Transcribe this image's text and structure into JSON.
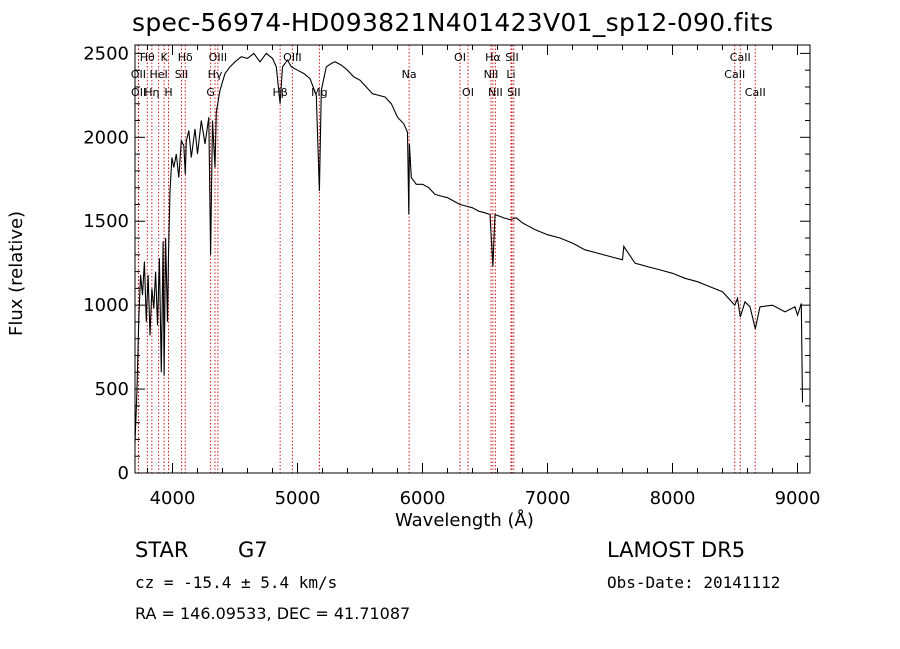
{
  "title": "spec-56974-HD093821N401423V01_sp12-090.fits",
  "object_class": "STAR",
  "subclass": "G7",
  "survey": "LAMOST DR5",
  "redshift_text": "cz = -15.4 ± 5.4 km/s",
  "obs_date_text": "Obs-Date: 20141112",
  "coords_text": "RA = 146.09533, DEC =  41.71087",
  "chart_data": {
    "type": "line",
    "title": "spec-56974-HD093821N401423V01_sp12-090.fits",
    "xlabel": "Wavelength (Å)",
    "ylabel": "Flux (relative)",
    "xlim": [
      3700,
      9100
    ],
    "ylim": [
      0,
      2550
    ],
    "xticks": [
      4000,
      5000,
      6000,
      7000,
      8000,
      9000
    ],
    "yticks": [
      0,
      500,
      1000,
      1500,
      2000,
      2500
    ],
    "grid": false,
    "line_color": "#000000",
    "marker_color": "#cc0000",
    "series": [
      {
        "x": [
          3700,
          3715,
          3730,
          3745,
          3760,
          3775,
          3790,
          3805,
          3820,
          3835,
          3850,
          3865,
          3880,
          3895,
          3910,
          3925,
          3933,
          3945,
          3960,
          3968,
          3980,
          3995,
          4010,
          4030,
          4050,
          4070,
          4090,
          4102,
          4110,
          4130,
          4150,
          4180,
          4200,
          4230,
          4260,
          4290,
          4305,
          4320,
          4340,
          4350,
          4380,
          4420,
          4460,
          4500,
          4550,
          4600,
          4650,
          4700,
          4750,
          4800,
          4830,
          4861,
          4880,
          4920,
          4950,
          5000,
          5050,
          5100,
          5150,
          5175,
          5190,
          5230,
          5270,
          5300,
          5350,
          5400,
          5450,
          5500,
          5550,
          5600,
          5650,
          5700,
          5750,
          5800,
          5850,
          5880,
          5890,
          5895,
          5910,
          5950,
          6000,
          6050,
          6100,
          6150,
          6200,
          6250,
          6300,
          6350,
          6400,
          6450,
          6500,
          6540,
          6563,
          6580,
          6650,
          6700,
          6750,
          6800,
          6850,
          6900,
          7000,
          7100,
          7200,
          7300,
          7400,
          7500,
          7600,
          7610,
          7700,
          7800,
          7900,
          8000,
          8100,
          8200,
          8300,
          8400,
          8498,
          8520,
          8542,
          8580,
          8620,
          8662,
          8700,
          8800,
          8900,
          8980,
          9000,
          9030,
          9040
        ],
        "y": [
          180,
          480,
          920,
          1180,
          1060,
          1260,
          900,
          1180,
          820,
          1100,
          980,
          1200,
          880,
          1280,
          600,
          1380,
          580,
          1400,
          900,
          1300,
          1680,
          1880,
          1820,
          1900,
          1760,
          1980,
          1950,
          1780,
          1980,
          2040,
          1880,
          2050,
          1900,
          2100,
          1960,
          2120,
          1300,
          2100,
          1820,
          2150,
          2280,
          2380,
          2420,
          2450,
          2480,
          2470,
          2500,
          2450,
          2500,
          2470,
          2420,
          2200,
          2420,
          2460,
          2420,
          2400,
          2380,
          2350,
          2250,
          1680,
          2280,
          2420,
          2440,
          2450,
          2430,
          2400,
          2360,
          2340,
          2300,
          2260,
          2250,
          2240,
          2200,
          2120,
          2080,
          2030,
          1540,
          1960,
          1760,
          1720,
          1720,
          1700,
          1660,
          1650,
          1640,
          1620,
          1600,
          1590,
          1580,
          1560,
          1550,
          1540,
          1230,
          1540,
          1520,
          1510,
          1520,
          1490,
          1470,
          1450,
          1420,
          1400,
          1370,
          1330,
          1310,
          1290,
          1270,
          1350,
          1250,
          1230,
          1210,
          1190,
          1160,
          1140,
          1110,
          1080,
          1000,
          1040,
          930,
          1020,
          990,
          860,
          990,
          1000,
          960,
          990,
          940,
          1010,
          420
        ]
      }
    ],
    "lines": [
      {
        "name": "Hθ",
        "wavelength": 3798,
        "row": 0
      },
      {
        "name": "K",
        "wavelength": 3933,
        "row": 0
      },
      {
        "name": "Hδ",
        "wavelength": 4102,
        "row": 0
      },
      {
        "name": "OIII",
        "wavelength": 4363,
        "row": 0
      },
      {
        "name": "OIII",
        "wavelength": 4959,
        "row": 0
      },
      {
        "name": "OI",
        "wavelength": 6300,
        "row": 0
      },
      {
        "name": "Hα",
        "wavelength": 6563,
        "row": 0
      },
      {
        "name": "SII",
        "wavelength": 6716,
        "row": 0
      },
      {
        "name": "CaII",
        "wavelength": 8542,
        "row": 0
      },
      {
        "name": "OII",
        "wavelength": 3727,
        "row": 1
      },
      {
        "name": "HeI",
        "wavelength": 3889,
        "row": 1
      },
      {
        "name": "SII",
        "wavelength": 4072,
        "row": 1
      },
      {
        "name": "Hγ",
        "wavelength": 4340,
        "row": 1
      },
      {
        "name": "Na",
        "wavelength": 5893,
        "row": 1
      },
      {
        "name": "NII",
        "wavelength": 6548,
        "row": 1
      },
      {
        "name": "Li",
        "wavelength": 6708,
        "row": 1
      },
      {
        "name": "CaII",
        "wavelength": 8498,
        "row": 1
      },
      {
        "name": "OII",
        "wavelength": 3729,
        "row": 2
      },
      {
        "name": "Hη",
        "wavelength": 3835,
        "row": 2
      },
      {
        "name": "H",
        "wavelength": 3968,
        "row": 2
      },
      {
        "name": "G",
        "wavelength": 4305,
        "row": 2
      },
      {
        "name": "Hβ",
        "wavelength": 4861,
        "row": 2
      },
      {
        "name": "Mg",
        "wavelength": 5175,
        "row": 2
      },
      {
        "name": "OI",
        "wavelength": 6364,
        "row": 2
      },
      {
        "name": "NII",
        "wavelength": 6583,
        "row": 2
      },
      {
        "name": "SII",
        "wavelength": 6731,
        "row": 2
      },
      {
        "name": "CaII",
        "wavelength": 8662,
        "row": 2
      }
    ]
  }
}
